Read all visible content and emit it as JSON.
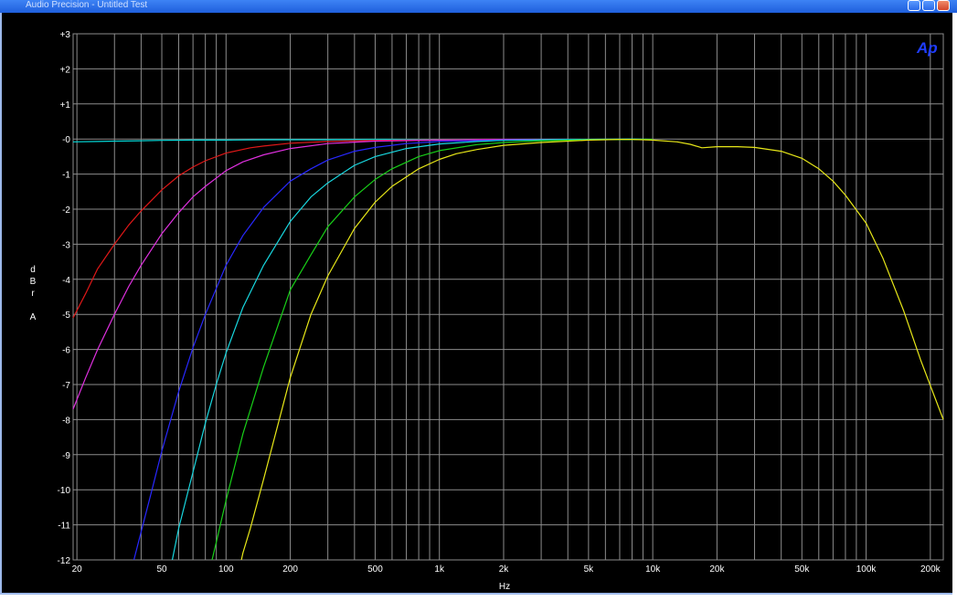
{
  "window": {
    "title": "Audio Precision - Untitled Test"
  },
  "chart_data": {
    "type": "line",
    "title": "",
    "xlabel": "Hz",
    "ylabel": [
      "d",
      "B",
      "r",
      "",
      "A"
    ],
    "xscale": "log",
    "xlim": [
      19.2,
      230000
    ],
    "ylim": [
      -12,
      3
    ],
    "grid": true,
    "background": "#000000",
    "grid_color": "#8c8c8c",
    "logo": "Ap",
    "yticks": [
      3,
      2,
      1,
      0,
      -1,
      -2,
      -3,
      -4,
      -5,
      -6,
      -7,
      -8,
      -9,
      -10,
      -11,
      -12
    ],
    "ytick_labels": [
      "+3",
      "+2",
      "+1",
      "-0",
      "-1",
      "-2",
      "-3",
      "-4",
      "-5",
      "-6",
      "-7",
      "-8",
      "-9",
      "-10",
      "-11",
      "-12"
    ],
    "xticks": [
      20,
      50,
      100,
      200,
      500,
      1000,
      2000,
      5000,
      10000,
      20000,
      50000,
      100000,
      200000
    ],
    "xtick_labels": [
      "20",
      "50",
      "100",
      "200",
      "500",
      "1k",
      "2k",
      "5k",
      "10k",
      "20k",
      "50k",
      "100k",
      "200k"
    ],
    "series": [
      {
        "color": "#00d8d8",
        "x": [
          19.2,
          25,
          30,
          40,
          50,
          70,
          100,
          150,
          200,
          300,
          500,
          1000,
          2000,
          3000,
          5000,
          8000,
          10000
        ],
        "y": [
          -0.08,
          -0.07,
          -0.06,
          -0.05,
          -0.04,
          -0.03,
          -0.03,
          -0.02,
          -0.02,
          -0.02,
          -0.01,
          -0.01,
          -0.01,
          -0.01,
          -0.01,
          0.0,
          -0.01
        ]
      },
      {
        "color": "#e01818",
        "x": [
          19.2,
          22,
          25,
          30,
          35,
          40,
          50,
          60,
          70,
          80,
          100,
          130,
          150,
          200,
          300,
          400,
          500,
          700,
          1000,
          2000,
          5000,
          10000
        ],
        "y": [
          -5.1,
          -4.4,
          -3.7,
          -3.0,
          -2.45,
          -2.05,
          -1.45,
          -1.05,
          -0.8,
          -0.62,
          -0.4,
          -0.25,
          -0.2,
          -0.12,
          -0.07,
          -0.05,
          -0.04,
          -0.03,
          -0.02,
          -0.01,
          -0.01,
          -0.01
        ]
      },
      {
        "color": "#e030e0",
        "x": [
          19.2,
          22,
          25,
          30,
          35,
          40,
          50,
          60,
          70,
          80,
          100,
          120,
          150,
          200,
          300,
          500,
          1000,
          2000,
          5000,
          10000
        ],
        "y": [
          -7.7,
          -6.8,
          -6.0,
          -5.0,
          -4.2,
          -3.6,
          -2.7,
          -2.1,
          -1.65,
          -1.35,
          -0.9,
          -0.65,
          -0.45,
          -0.27,
          -0.13,
          -0.06,
          -0.03,
          -0.01,
          -0.01,
          -0.01
        ]
      },
      {
        "color": "#2828ff",
        "x": [
          37,
          40,
          45,
          50,
          60,
          70,
          80,
          100,
          120,
          150,
          200,
          250,
          300,
          400,
          500,
          700,
          1000,
          2000,
          5000,
          10000
        ],
        "y": [
          -12,
          -11.2,
          -10.0,
          -8.9,
          -7.2,
          -5.95,
          -5.0,
          -3.6,
          -2.75,
          -1.95,
          -1.2,
          -0.85,
          -0.6,
          -0.35,
          -0.24,
          -0.13,
          -0.07,
          -0.03,
          -0.01,
          -0.01
        ]
      },
      {
        "color": "#18d8e0",
        "x": [
          56,
          60,
          70,
          80,
          90,
          100,
          120,
          150,
          200,
          250,
          300,
          400,
          500,
          700,
          1000,
          1500,
          2000,
          3000,
          5000,
          10000
        ],
        "y": [
          -12,
          -11.1,
          -9.5,
          -8.1,
          -7.0,
          -6.1,
          -4.8,
          -3.6,
          -2.35,
          -1.65,
          -1.25,
          -0.75,
          -0.5,
          -0.27,
          -0.14,
          -0.07,
          -0.04,
          -0.02,
          -0.01,
          -0.01
        ]
      },
      {
        "color": "#18d018",
        "x": [
          86,
          90,
          100,
          120,
          150,
          200,
          250,
          300,
          400,
          500,
          600,
          800,
          1000,
          1500,
          2000,
          3000,
          5000,
          10000
        ],
        "y": [
          -12,
          -11.5,
          -10.3,
          -8.4,
          -6.5,
          -4.3,
          -3.3,
          -2.5,
          -1.65,
          -1.15,
          -0.85,
          -0.5,
          -0.33,
          -0.16,
          -0.1,
          -0.05,
          -0.02,
          -0.01
        ]
      },
      {
        "color": "#e8e818",
        "x": [
          118,
          120,
          130,
          150,
          200,
          250,
          300,
          400,
          500,
          600,
          800,
          1000,
          1200,
          1500,
          2000,
          3000,
          5000,
          7000,
          8000,
          10000,
          13000,
          15000,
          17000,
          20000,
          25000,
          30000,
          40000,
          50000,
          60000,
          70000,
          80000,
          100000,
          120000,
          150000,
          180000,
          230000
        ],
        "y": [
          -12,
          -11.8,
          -11.1,
          -9.7,
          -6.8,
          -5.0,
          -3.9,
          -2.55,
          -1.8,
          -1.35,
          -0.85,
          -0.58,
          -0.42,
          -0.3,
          -0.18,
          -0.1,
          -0.03,
          -0.01,
          -0.01,
          -0.03,
          -0.08,
          -0.15,
          -0.25,
          -0.22,
          -0.22,
          -0.24,
          -0.35,
          -0.55,
          -0.85,
          -1.2,
          -1.6,
          -2.4,
          -3.4,
          -4.9,
          -6.3,
          -8.0
        ]
      }
    ]
  }
}
